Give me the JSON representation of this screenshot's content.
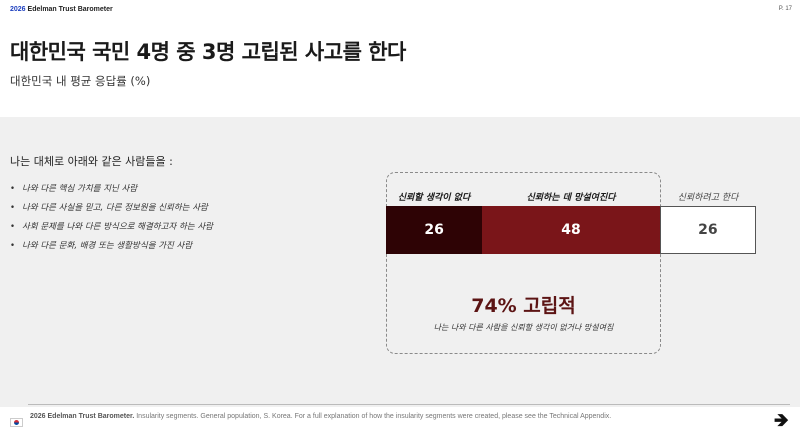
{
  "header": {
    "brand_year": "2026",
    "brand_name": "Edelman Trust Barometer",
    "page": "P. 17"
  },
  "title": "대한민국 국민 4명 중 3명 고립된 사고를 한다",
  "subtitle": "대한민국 내 평균 응답률 (%)",
  "intro": "나는 대체로 아래와 같은 사람들을 :",
  "bullets": [
    "나와 다른 핵심 가치를 지닌 사람",
    "나와 다른 사실을 믿고, 다른 정보원을 신뢰하는 사람",
    "사회 문제를 나와 다른 방식으로 해결하고자 하는 사람",
    "나와 다른 문화, 배경 또는 생활방식을 가진 사람"
  ],
  "chart_data": {
    "type": "bar",
    "orientation": "horizontal-stacked",
    "categories": [
      "신뢰할 생각이 없다",
      "신뢰하는 데 망설여진다",
      "신뢰하려고 한다"
    ],
    "values": [
      26,
      48,
      26
    ],
    "colors": [
      "#2e0305",
      "#7a1519",
      "#ffffff"
    ],
    "summary": {
      "value": "74% 고립적",
      "note": "나는 나와 다른 사람을 신뢰할 생각이 없거나 망설여짐"
    }
  },
  "footer": {
    "source_bold": "2026 Edelman Trust Barometer.",
    "source_text": " Insularity segments. General population, S. Korea. For a full explanation of how the insularity segments were created, please see the Technical Appendix.",
    "arrow": "🡺"
  }
}
